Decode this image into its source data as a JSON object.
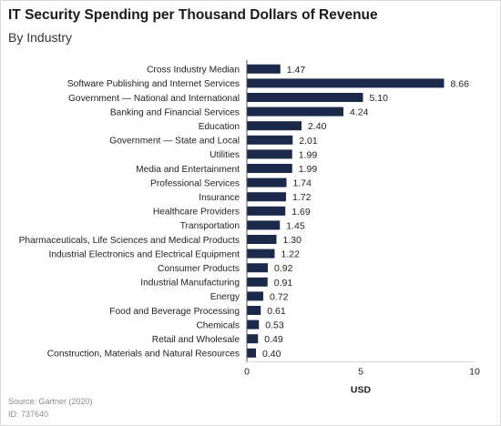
{
  "header": {
    "title": "IT Security Spending per Thousand Dollars of Revenue",
    "subtitle": "By Industry"
  },
  "footer": {
    "source": "Source: Gartner (2020)",
    "id": "ID: 737640"
  },
  "colors": {
    "bar": "#1b2a4a",
    "axis": "#555555",
    "text": "#222222"
  },
  "chart_data": {
    "type": "bar",
    "orientation": "horizontal",
    "categories": [
      "Cross Industry Median",
      "Software Publishing and Internet Services",
      "Government — National and International",
      "Banking and Financial Services",
      "Education",
      "Government — State and Local",
      "Utilities",
      "Media and Entertainment",
      "Professional Services",
      "Insurance",
      "Healthcare Providers",
      "Transportation",
      "Pharmaceuticals, Life Sciences and Medical Products",
      "Industrial Electronics and Electrical Equipment",
      "Consumer Products",
      "Industrial Manufacturing",
      "Energy",
      "Food and Beverage Processing",
      "Chemicals",
      "Retail and Wholesale",
      "Construction, Materials and Natural Resources"
    ],
    "values": [
      1.47,
      8.66,
      5.1,
      4.24,
      2.4,
      2.01,
      1.99,
      1.99,
      1.74,
      1.72,
      1.69,
      1.45,
      1.3,
      1.22,
      0.92,
      0.91,
      0.72,
      0.61,
      0.53,
      0.49,
      0.4
    ],
    "value_labels": [
      "1.47",
      "8.66",
      "5.10",
      "4.24",
      "2.40",
      "2.01",
      "1.99",
      "1.99",
      "1.74",
      "1.72",
      "1.69",
      "1.45",
      "1.30",
      "1.22",
      "0.92",
      "0.91",
      "0.72",
      "0.61",
      "0.53",
      "0.49",
      "0.40"
    ],
    "xlabel": "USD",
    "xlim": [
      0,
      10
    ],
    "xticks": [
      "0",
      "5",
      "10"
    ],
    "grid": false,
    "legend": "none"
  }
}
